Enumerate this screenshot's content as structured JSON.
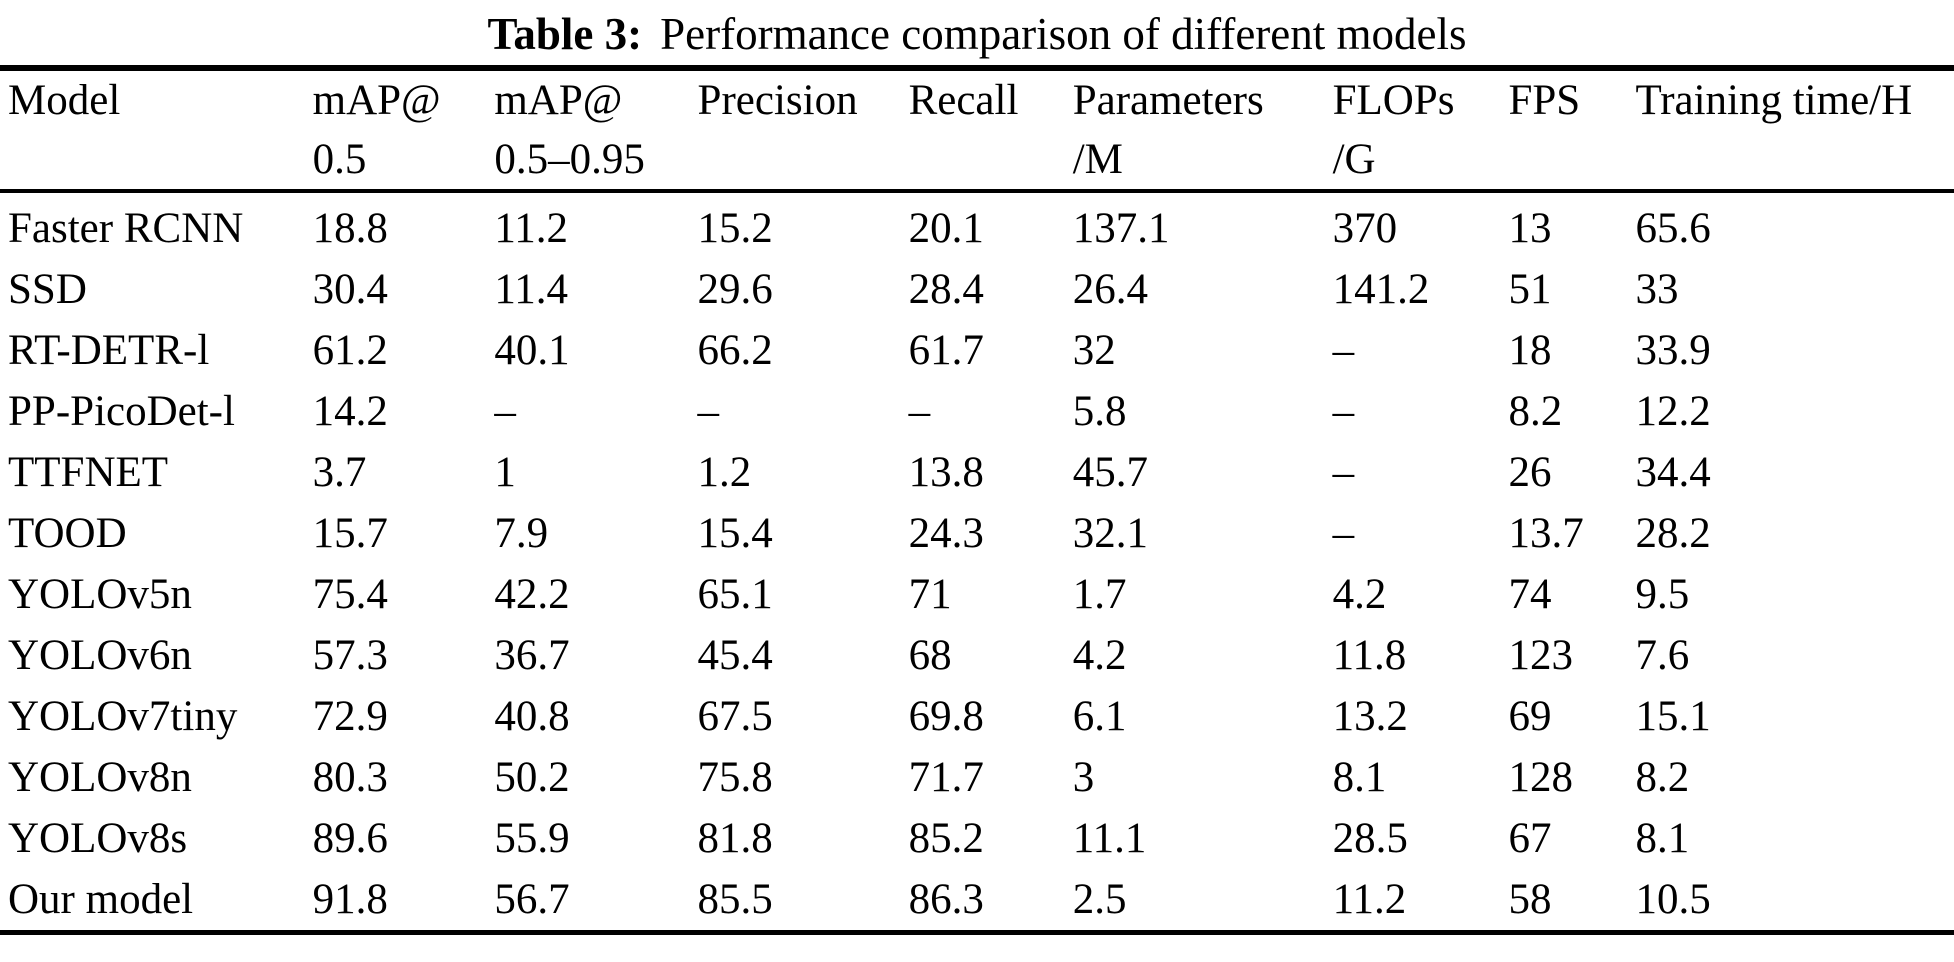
{
  "caption": {
    "label": "Table 3:",
    "text": "Performance comparison of different models"
  },
  "table": {
    "columns": [
      {
        "id": "model",
        "lines": [
          "Model"
        ]
      },
      {
        "id": "map50",
        "lines": [
          "mAP@",
          "0.5"
        ]
      },
      {
        "id": "map5095",
        "lines": [
          "mAP@",
          "0.5–0.95"
        ]
      },
      {
        "id": "precision",
        "lines": [
          "Precision"
        ]
      },
      {
        "id": "recall",
        "lines": [
          "Recall"
        ]
      },
      {
        "id": "parameters",
        "lines": [
          "Parameters",
          "/M"
        ]
      },
      {
        "id": "flops",
        "lines": [
          "FLOPs",
          "/G"
        ]
      },
      {
        "id": "fps",
        "lines": [
          "FPS"
        ]
      },
      {
        "id": "training",
        "lines": [
          "Training time/H"
        ]
      }
    ],
    "column_widths_pct": [
      16.0,
      9.3,
      10.4,
      10.8,
      8.4,
      13.3,
      9.0,
      6.5,
      16.3
    ],
    "rows": [
      [
        "Faster RCNN",
        "18.8",
        "11.2",
        "15.2",
        "20.1",
        "137.1",
        "370",
        "13",
        "65.6"
      ],
      [
        "SSD",
        "30.4",
        "11.4",
        "29.6",
        "28.4",
        "26.4",
        "141.2",
        "51",
        "33"
      ],
      [
        "RT-DETR-l",
        "61.2",
        "40.1",
        "66.2",
        "61.7",
        "32",
        "–",
        "18",
        "33.9"
      ],
      [
        "PP-PicoDet-l",
        "14.2",
        "–",
        "–",
        "–",
        "5.8",
        "–",
        "8.2",
        "12.2"
      ],
      [
        "TTFNET",
        "3.7",
        "1",
        "1.2",
        "13.8",
        "45.7",
        "–",
        "26",
        "34.4"
      ],
      [
        "TOOD",
        "15.7",
        "7.9",
        "15.4",
        "24.3",
        "32.1",
        "–",
        "13.7",
        "28.2"
      ],
      [
        "YOLOv5n",
        "75.4",
        "42.2",
        "65.1",
        "71",
        "1.7",
        "4.2",
        "74",
        "9.5"
      ],
      [
        "YOLOv6n",
        "57.3",
        "36.7",
        "45.4",
        "68",
        "4.2",
        "11.8",
        "123",
        "7.6"
      ],
      [
        "YOLOv7tiny",
        "72.9",
        "40.8",
        "67.5",
        "69.8",
        "6.1",
        "13.2",
        "69",
        "15.1"
      ],
      [
        "YOLOv8n",
        "80.3",
        "50.2",
        "75.8",
        "71.7",
        "3",
        "8.1",
        "128",
        "8.2"
      ],
      [
        "YOLOv8s",
        "89.6",
        "55.9",
        "81.8",
        "85.2",
        "11.1",
        "28.5",
        "67",
        "8.1"
      ],
      [
        "Our model",
        "91.8",
        "56.7",
        "85.5",
        "86.3",
        "2.5",
        "11.2",
        "58",
        "10.5"
      ]
    ]
  },
  "colors": {
    "text": "#000000",
    "background": "#ffffff",
    "rule": "#000000"
  }
}
